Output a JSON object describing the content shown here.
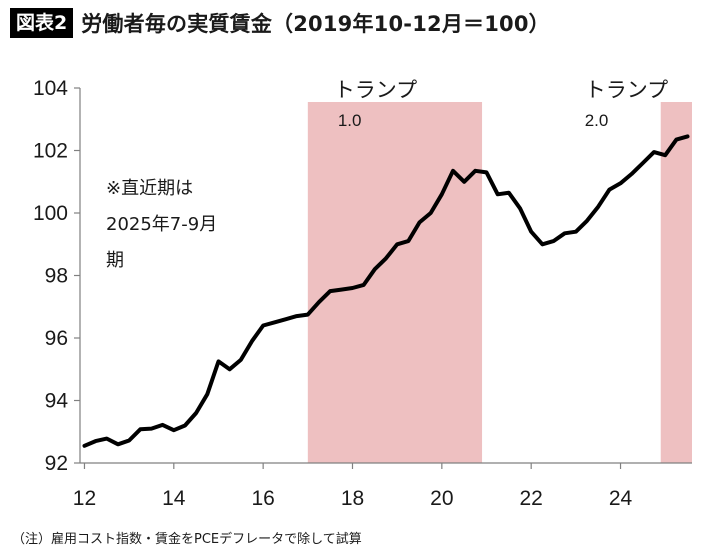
{
  "header": {
    "figure_tag": "図表2",
    "title": "労働者毎の実質賃金（2019年10-12月＝100）"
  },
  "footnote": "（注）雇用コスト指数・賃金をPCEデフレータで除して試算",
  "chart_data": {
    "type": "line",
    "title": "労働者毎の実質賃金（2019年10-12月＝100）",
    "xlabel": "",
    "ylabel": "",
    "xlim": [
      11.9,
      25.6
    ],
    "ylim": [
      92,
      104
    ],
    "x_ticks": [
      12,
      14,
      16,
      18,
      20,
      22,
      24
    ],
    "x_tick_labels": [
      "12",
      "14",
      "16",
      "18",
      "20",
      "22",
      "24"
    ],
    "y_ticks": [
      92,
      94,
      96,
      98,
      100,
      102,
      104
    ],
    "y_tick_labels": [
      "92",
      "94",
      "96",
      "98",
      "100",
      "102",
      "104"
    ],
    "grid": false,
    "line_color": "#000000",
    "shade_color": "#eec0c1",
    "periods": [
      {
        "label": "トランプ",
        "sublabel": "1.0",
        "start": 17.0,
        "end": 20.9
      },
      {
        "label": "トランプ",
        "sublabel": "2.0",
        "start": 24.9,
        "end": 25.6
      }
    ],
    "annotation": [
      "※直近期は",
      "2025年7-9月",
      "期"
    ],
    "series": [
      {
        "values": [
          [
            12.0,
            92.55
          ],
          [
            12.25,
            92.7
          ],
          [
            12.5,
            92.78
          ],
          [
            12.75,
            92.6
          ],
          [
            13.0,
            92.72
          ],
          [
            13.25,
            93.08
          ],
          [
            13.5,
            93.1
          ],
          [
            13.75,
            93.22
          ],
          [
            14.0,
            93.05
          ],
          [
            14.25,
            93.2
          ],
          [
            14.5,
            93.6
          ],
          [
            14.75,
            94.2
          ],
          [
            15.0,
            95.25
          ],
          [
            15.25,
            95.0
          ],
          [
            15.5,
            95.3
          ],
          [
            15.75,
            95.9
          ],
          [
            16.0,
            96.4
          ],
          [
            16.25,
            96.5
          ],
          [
            16.5,
            96.6
          ],
          [
            16.75,
            96.7
          ],
          [
            17.0,
            96.75
          ],
          [
            17.25,
            97.15
          ],
          [
            17.5,
            97.5
          ],
          [
            17.75,
            97.55
          ],
          [
            18.0,
            97.6
          ],
          [
            18.25,
            97.7
          ],
          [
            18.5,
            98.2
          ],
          [
            18.75,
            98.55
          ],
          [
            19.0,
            99.0
          ],
          [
            19.25,
            99.1
          ],
          [
            19.5,
            99.7
          ],
          [
            19.75,
            100.0
          ],
          [
            20.0,
            100.6
          ],
          [
            20.25,
            101.35
          ],
          [
            20.5,
            101.0
          ],
          [
            20.75,
            101.35
          ],
          [
            21.0,
            101.3
          ],
          [
            21.25,
            100.6
          ],
          [
            21.5,
            100.65
          ],
          [
            21.75,
            100.15
          ],
          [
            22.0,
            99.4
          ],
          [
            22.25,
            99.0
          ],
          [
            22.5,
            99.1
          ],
          [
            22.75,
            99.35
          ],
          [
            23.0,
            99.4
          ],
          [
            23.25,
            99.75
          ],
          [
            23.5,
            100.2
          ],
          [
            23.75,
            100.75
          ],
          [
            24.0,
            100.95
          ],
          [
            24.25,
            101.25
          ],
          [
            24.5,
            101.6
          ],
          [
            24.75,
            101.95
          ],
          [
            25.0,
            101.85
          ],
          [
            25.25,
            102.35
          ],
          [
            25.5,
            102.45
          ]
        ]
      }
    ]
  }
}
